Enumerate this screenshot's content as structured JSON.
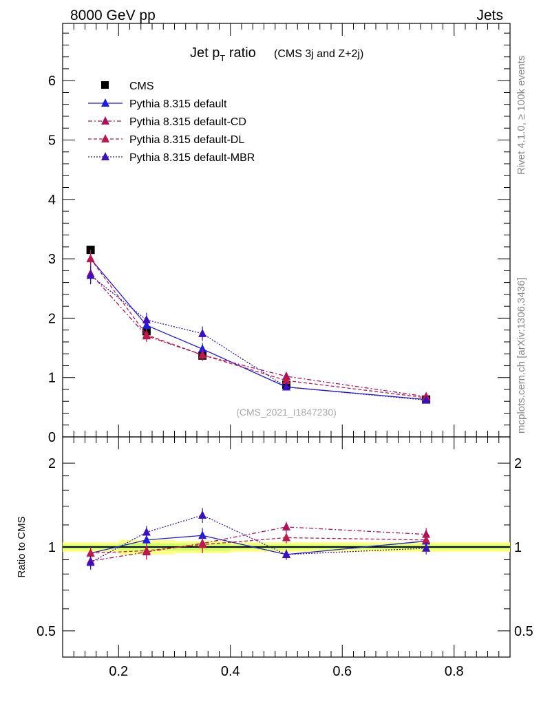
{
  "header": {
    "left": "8000 GeV pp",
    "right": "Jets"
  },
  "side": {
    "top": "Rivet 4.1.0, ≥ 100k events",
    "bottom": "mcplots.cern.ch [arXiv:1306.3436]"
  },
  "watermark": "(CMS_2021_I1847230)",
  "chart_data": [
    {
      "type": "line",
      "title": "Jet p_T ratio",
      "title_parts": {
        "main": "Jet p",
        "sub": "T",
        "rest": " ratio",
        "suffix": "(CMS 3j and Z+2j)"
      },
      "xlim": [
        0.1,
        0.9
      ],
      "ylim": [
        0,
        7
      ],
      "y_ticks": [
        "0",
        "1",
        "2",
        "3",
        "4",
        "5",
        "6"
      ],
      "x": [
        0.15,
        0.25,
        0.35,
        0.5,
        0.75
      ],
      "series": [
        {
          "name": "CMS",
          "marker": "square",
          "color": "#000000",
          "dash": "",
          "values": [
            3.15,
            1.78,
            1.37,
            0.88,
            0.63
          ]
        },
        {
          "name": "Pythia 8.315 default",
          "marker": "triangle",
          "color": "#1a1aee",
          "dash": "",
          "values": [
            3.0,
            1.88,
            1.48,
            0.84,
            0.63
          ],
          "errors": [
            0.15,
            0.1,
            0.1,
            0.04,
            0.03
          ]
        },
        {
          "name": "Pythia 8.315 default-CD",
          "marker": "triangle",
          "color": "#b0105a",
          "dash": "6 3 2 3",
          "values": [
            2.75,
            1.7,
            1.38,
            1.02,
            0.68
          ],
          "errors": [
            0.15,
            0.1,
            0.1,
            0.05,
            0.03
          ]
        },
        {
          "name": "Pythia 8.315 default-DL",
          "marker": "triangle",
          "color": "#c0184a",
          "dash": "5 3",
          "values": [
            3.0,
            1.72,
            1.38,
            0.95,
            0.66
          ],
          "errors": [
            0.15,
            0.1,
            0.1,
            0.05,
            0.03
          ]
        },
        {
          "name": "Pythia 8.315 default-MBR",
          "marker": "triangle",
          "color": "#3a10c0",
          "dash": "2 2",
          "values": [
            2.72,
            1.97,
            1.74,
            0.84,
            0.62
          ],
          "errors": [
            0.15,
            0.12,
            0.12,
            0.04,
            0.03
          ]
        }
      ]
    },
    {
      "type": "line",
      "ylabel": "Ratio to CMS",
      "scale": "log",
      "ylim": [
        0.4,
        2.4
      ],
      "y_ticks": [
        "0.5",
        "1",
        "2"
      ],
      "x_ticks": [
        "0.2",
        "0.4",
        "0.6",
        "0.8"
      ],
      "x": [
        0.15,
        0.25,
        0.35,
        0.5,
        0.75
      ],
      "series": [
        {
          "name": "Pythia 8.315 default",
          "color": "#1a1aee",
          "dash": "",
          "values": [
            0.95,
            1.06,
            1.1,
            0.94,
            1.05
          ],
          "errors": [
            0.05,
            0.06,
            0.07,
            0.04,
            0.05
          ]
        },
        {
          "name": "Pythia 8.315 default-CD",
          "color": "#b0105a",
          "dash": "6 3 2 3",
          "values": [
            0.89,
            0.96,
            1.03,
            1.18,
            1.11
          ],
          "errors": [
            0.05,
            0.06,
            0.07,
            0.05,
            0.06
          ]
        },
        {
          "name": "Pythia 8.315 default-DL",
          "color": "#c0184a",
          "dash": "5 3",
          "values": [
            0.95,
            0.97,
            1.02,
            1.08,
            1.06
          ],
          "errors": [
            0.05,
            0.06,
            0.07,
            0.05,
            0.05
          ]
        },
        {
          "name": "Pythia 8.315 default-MBR",
          "color": "#3a10c0",
          "dash": "2 2",
          "values": [
            0.88,
            1.13,
            1.3,
            0.94,
            0.99
          ],
          "errors": [
            0.05,
            0.06,
            0.08,
            0.04,
            0.05
          ]
        }
      ],
      "band": {
        "stat_color": "#ccff66",
        "total_color": "#ffff88",
        "stat_halfwidth": [
          0.02,
          0.03,
          0.03,
          0.02,
          0.02
        ],
        "total_halfwidth": [
          0.04,
          0.06,
          0.05,
          0.04,
          0.04
        ]
      }
    }
  ]
}
